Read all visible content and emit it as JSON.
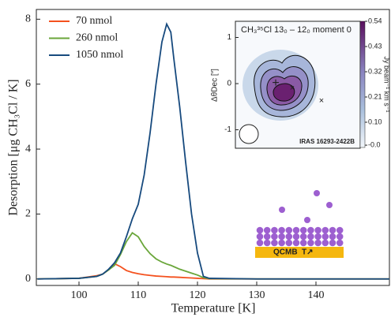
{
  "chart_data": {
    "type": "line",
    "xlabel": "Temperature [K]",
    "ylabel": "Desorption [μg CH₃Cl / K]",
    "x": [
      93,
      100,
      103,
      104,
      105,
      106,
      107,
      108,
      109,
      110,
      111,
      112,
      113,
      114,
      114.8,
      115.5,
      116,
      117,
      118,
      119,
      120,
      121,
      122,
      130,
      152.4
    ],
    "series": [
      {
        "name": "70 nmol",
        "color": "#f4511e",
        "values": [
          0,
          0.02,
          0.1,
          0.15,
          0.28,
          0.47,
          0.38,
          0.26,
          0.2,
          0.16,
          0.13,
          0.11,
          0.09,
          0.08,
          0.07,
          0.06,
          0.06,
          0.05,
          0.04,
          0.03,
          0.02,
          0.01,
          0,
          0,
          0
        ]
      },
      {
        "name": "260 nmol",
        "color": "#6aa63a",
        "values": [
          0,
          0.02,
          0.08,
          0.15,
          0.28,
          0.42,
          0.75,
          1.15,
          1.42,
          1.3,
          1.0,
          0.78,
          0.62,
          0.52,
          0.46,
          0.42,
          0.38,
          0.3,
          0.24,
          0.18,
          0.12,
          0.04,
          0.01,
          0,
          0
        ]
      },
      {
        "name": "1050 nmol",
        "color": "#174a7e",
        "values": [
          0,
          0.02,
          0.08,
          0.15,
          0.3,
          0.5,
          0.8,
          1.3,
          1.85,
          2.3,
          3.2,
          4.5,
          6.0,
          7.3,
          7.85,
          7.6,
          6.8,
          5.3,
          3.6,
          2.0,
          0.8,
          0.08,
          0.02,
          0,
          0
        ]
      }
    ],
    "xlim": [
      92.8,
      152.4
    ],
    "ylim": [
      -0.2,
      8.3
    ],
    "xticks": [
      100,
      110,
      120,
      130,
      140
    ],
    "yticks": [
      0,
      2,
      4,
      6,
      8
    ],
    "legend": "upper left"
  },
  "inset": {
    "title": "CH₃³⁵Cl 13₀ – 12₀ moment 0",
    "source": "IRAS 16293-2422B",
    "ylabel": "ΔθDec [″]",
    "ylim": [
      -1.4,
      1.35
    ],
    "yticks": [
      1,
      0,
      -1
    ],
    "colorbar": {
      "label": "Jy beam⁻¹ km s⁻¹",
      "lim": [
        -0.01,
        0.54
      ],
      "ticks": [
        0.54,
        0.43,
        0.32,
        0.21,
        {
          "value": 0.1,
          "label": "0.10"
        },
        {
          "value": 0,
          "label": "-0.0"
        }
      ]
    }
  },
  "diagram": {
    "label": "QCMB",
    "temperature": "T↗"
  }
}
